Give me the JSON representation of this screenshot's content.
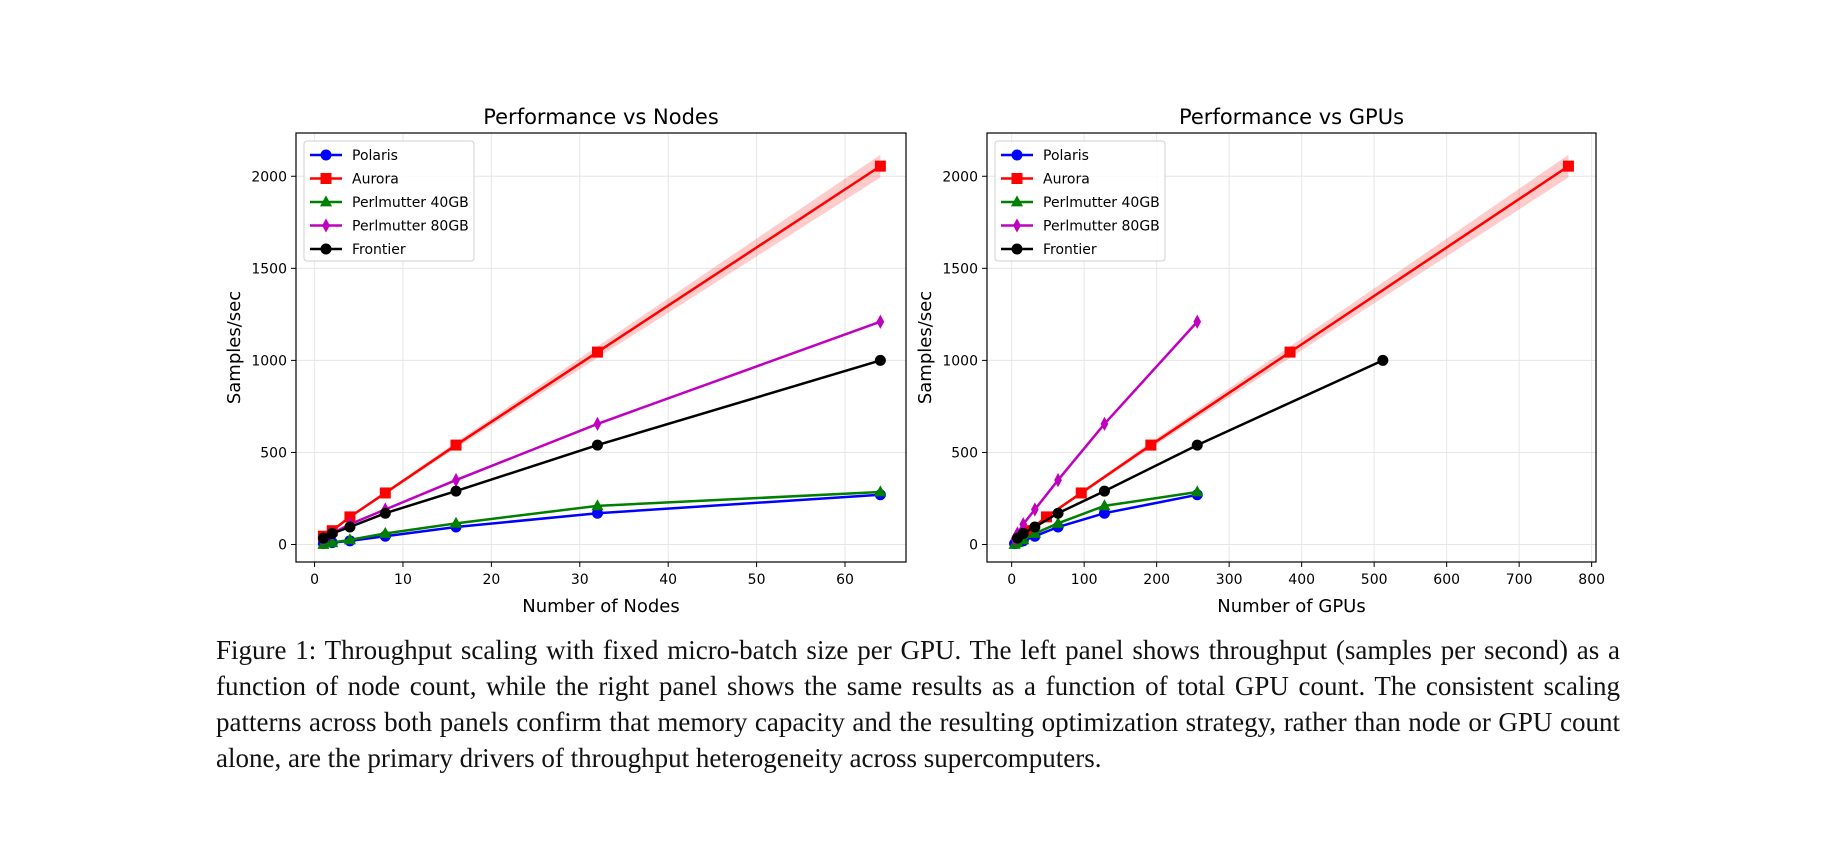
{
  "caption": "Figure 1: Throughput scaling with fixed micro-batch size per GPU. The left panel shows throughput (samples per second) as a function of node count, while the right panel shows the same results as a function of total GPU count.  The consistent scaling patterns across both panels confirm that memory capacity and the resulting optimization strategy, rather than node or GPU count alone, are the primary drivers of throughput heterogeneity across supercomputers.",
  "chart_data": [
    {
      "type": "line",
      "title": "Performance vs Nodes",
      "xlabel": "Number of Nodes",
      "ylabel": "Samples/sec",
      "xlim": [
        -2.1,
        66.9
      ],
      "ylim": [
        -95,
        2235
      ],
      "xticks": [
        0,
        10,
        20,
        30,
        40,
        50,
        60
      ],
      "yticks": [
        0,
        500,
        1000,
        1500,
        2000
      ],
      "grid": true,
      "legend_position": "top-left",
      "series": [
        {
          "name": "Polaris",
          "color": "#0000ff",
          "marker": "circle",
          "x": [
            1,
            2,
            4,
            8,
            16,
            32,
            64
          ],
          "y": [
            5,
            10,
            20,
            45,
            95,
            170,
            270
          ]
        },
        {
          "name": "Aurora",
          "color": "#ff0000",
          "marker": "square",
          "band": 0.03,
          "x": [
            1,
            2,
            4,
            8,
            16,
            32,
            64
          ],
          "y": [
            45,
            75,
            150,
            280,
            540,
            1045,
            2055
          ]
        },
        {
          "name": "Perlmutter 40GB",
          "color": "#008000",
          "marker": "triangle",
          "x": [
            1,
            2,
            4,
            8,
            16,
            32,
            64
          ],
          "y": [
            0,
            10,
            25,
            60,
            115,
            210,
            285
          ]
        },
        {
          "name": "Perlmutter 80GB",
          "color": "#bf00bf",
          "marker": "diamond",
          "x": [
            1,
            2,
            4,
            8,
            16,
            32,
            64
          ],
          "y": [
            30,
            60,
            110,
            190,
            350,
            655,
            1210
          ]
        },
        {
          "name": "Frontier",
          "color": "#000000",
          "marker": "circle",
          "x": [
            1,
            2,
            4,
            8,
            16,
            32,
            64
          ],
          "y": [
            35,
            60,
            95,
            170,
            290,
            540,
            1000
          ]
        }
      ]
    },
    {
      "type": "line",
      "title": "Performance vs GPUs",
      "xlabel": "Number of GPUs",
      "ylabel": "Samples/sec",
      "xlim": [
        -34,
        806
      ],
      "ylim": [
        -95,
        2235
      ],
      "xticks": [
        0,
        100,
        200,
        300,
        400,
        500,
        600,
        700,
        800
      ],
      "yticks": [
        0,
        500,
        1000,
        1500,
        2000
      ],
      "grid": true,
      "legend_position": "top-left",
      "series": [
        {
          "name": "Polaris",
          "color": "#0000ff",
          "marker": "circle",
          "x": [
            4,
            8,
            16,
            32,
            64,
            128,
            256
          ],
          "y": [
            5,
            10,
            20,
            45,
            95,
            170,
            270
          ]
        },
        {
          "name": "Aurora",
          "color": "#ff0000",
          "marker": "square",
          "band": 0.03,
          "x": [
            12,
            24,
            48,
            96,
            192,
            384,
            768
          ],
          "y": [
            45,
            75,
            150,
            280,
            540,
            1045,
            2055
          ]
        },
        {
          "name": "Perlmutter 40GB",
          "color": "#008000",
          "marker": "triangle",
          "x": [
            4,
            8,
            16,
            32,
            64,
            128,
            256
          ],
          "y": [
            0,
            10,
            25,
            60,
            115,
            210,
            285
          ]
        },
        {
          "name": "Perlmutter 80GB",
          "color": "#bf00bf",
          "marker": "diamond",
          "x": [
            4,
            8,
            16,
            32,
            64,
            128,
            256
          ],
          "y": [
            30,
            60,
            110,
            190,
            350,
            655,
            1210
          ]
        },
        {
          "name": "Frontier",
          "color": "#000000",
          "marker": "circle",
          "x": [
            8,
            16,
            32,
            64,
            128,
            256,
            512
          ],
          "y": [
            35,
            60,
            95,
            170,
            290,
            540,
            1000
          ]
        }
      ]
    }
  ]
}
